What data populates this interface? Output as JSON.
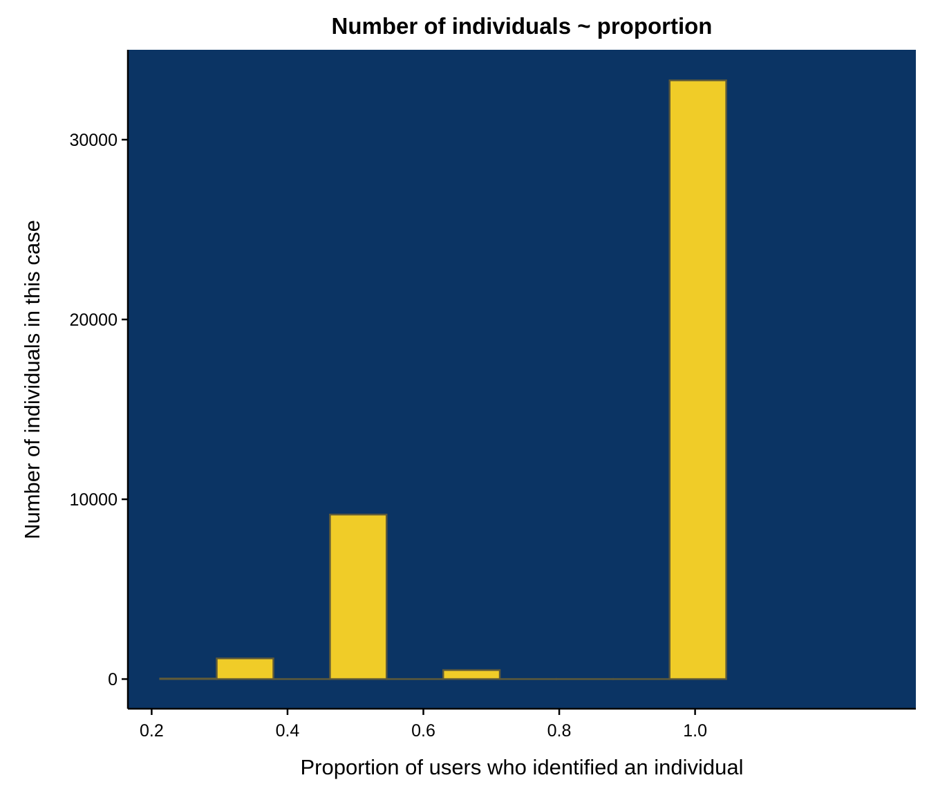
{
  "chart_data": {
    "type": "bar",
    "title": "Number of individuals ~ proportion",
    "xlabel": "Proportion of users who identified an individual",
    "ylabel": "Number of individuals in this case",
    "x_ticks": [
      "0.2",
      "0.4",
      "0.6",
      "0.8",
      "1.0"
    ],
    "y_ticks": [
      "0",
      "10000",
      "20000",
      "30000"
    ],
    "xlim": [
      0.165,
      1.325
    ],
    "ylim": [
      -1650,
      35000
    ],
    "grid": false,
    "legend": "none",
    "bins": [
      {
        "x0": 0.2125,
        "x1": 0.2958,
        "value": 30
      },
      {
        "x0": 0.2958,
        "x1": 0.3792,
        "value": 1150
      },
      {
        "x0": 0.3792,
        "x1": 0.4625,
        "value": 0
      },
      {
        "x0": 0.4625,
        "x1": 0.5458,
        "value": 9150
      },
      {
        "x0": 0.5458,
        "x1": 0.6292,
        "value": 0
      },
      {
        "x0": 0.6292,
        "x1": 0.7125,
        "value": 500
      },
      {
        "x0": 0.7125,
        "x1": 0.7958,
        "value": 0
      },
      {
        "x0": 0.7958,
        "x1": 0.8792,
        "value": 0
      },
      {
        "x0": 0.8792,
        "x1": 0.9625,
        "value": 0
      },
      {
        "x0": 0.9625,
        "x1": 1.0458,
        "value": 33300
      }
    ],
    "colors": {
      "panel_background": "#0b3464",
      "bar_fill": "#f0cc28",
      "bar_outline": "#5e5a3a",
      "axis_line": "#000000"
    }
  }
}
